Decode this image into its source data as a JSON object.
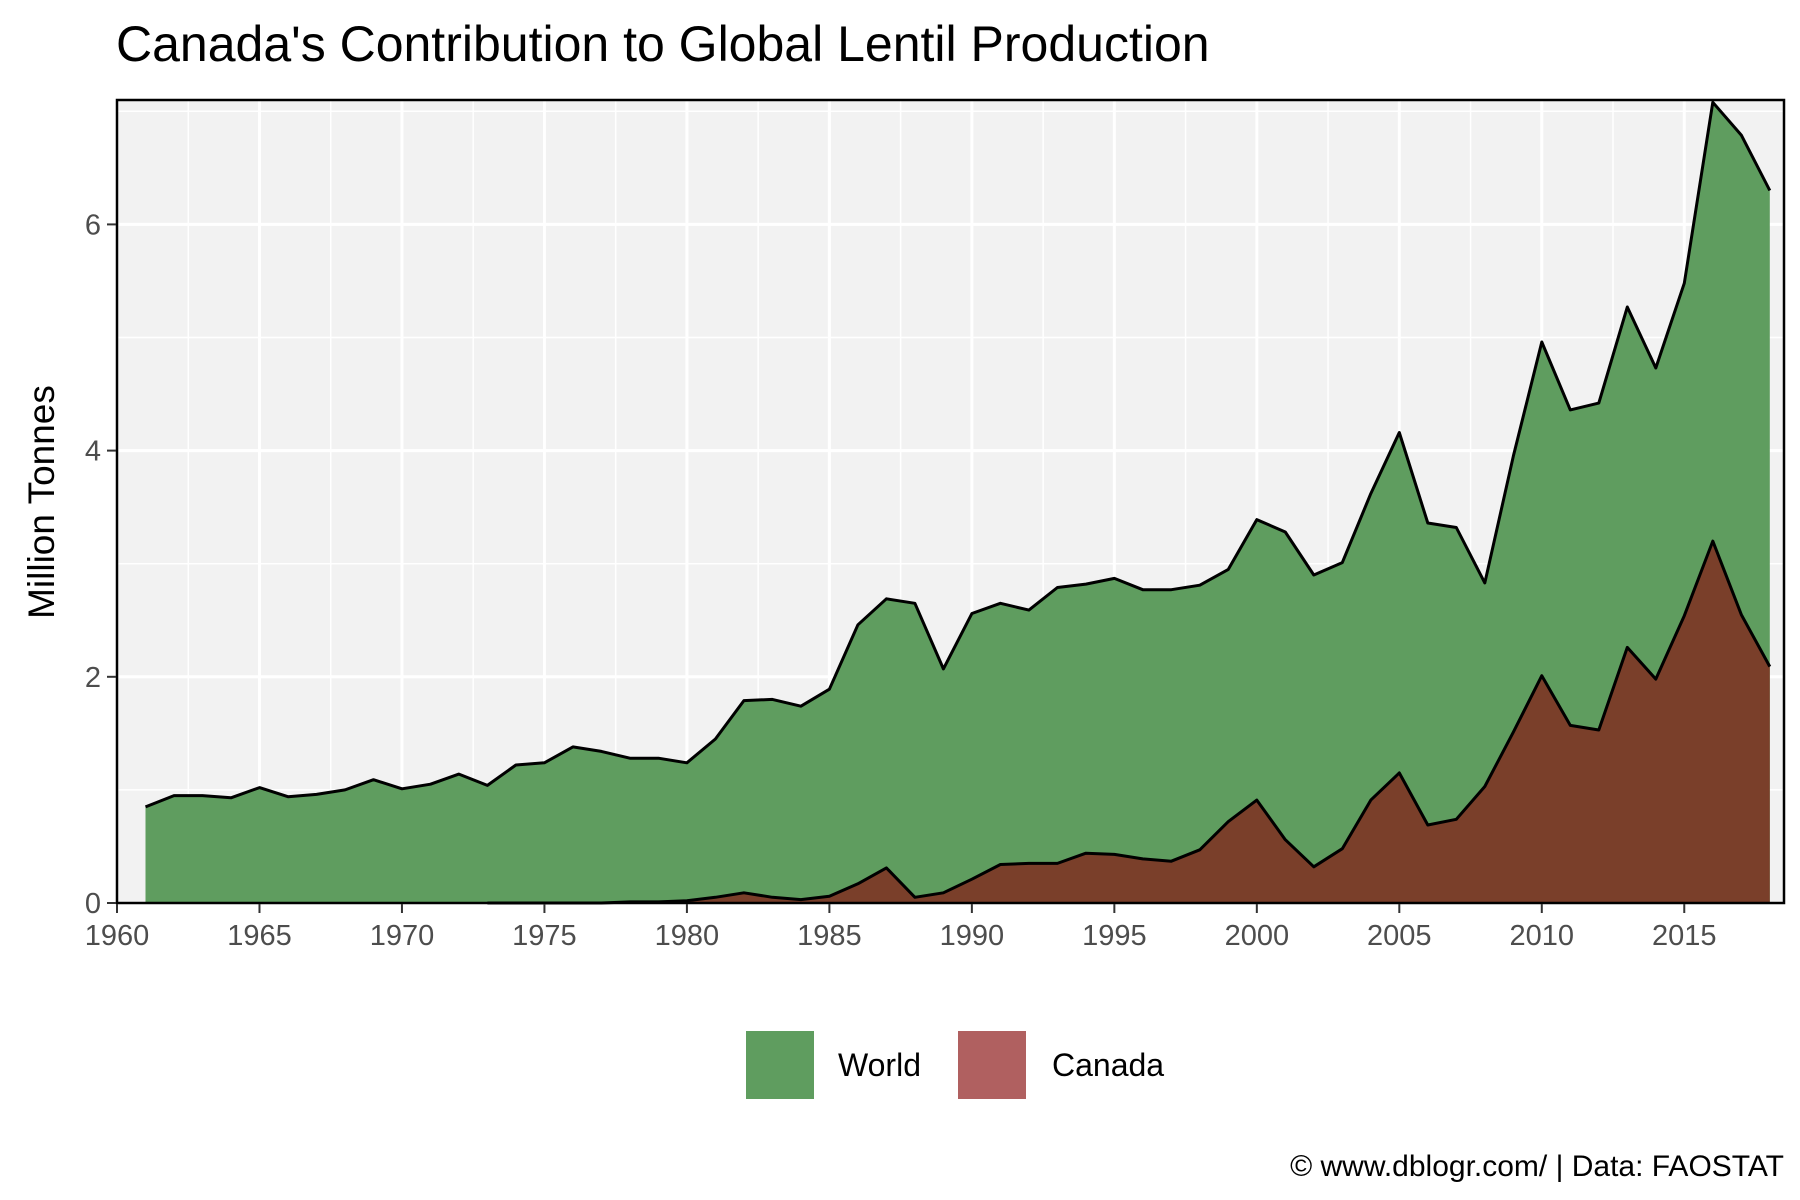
{
  "chart_data": {
    "type": "area",
    "title": "Canada's Contribution to Global Lentil Production",
    "xlabel": "",
    "ylabel": "Million Tonnes",
    "xlim": [
      1960,
      2018.5
    ],
    "ylim": [
      0,
      7.1
    ],
    "x_ticks": [
      "1960",
      "1965",
      "1970",
      "1975",
      "1980",
      "1985",
      "1990",
      "1995",
      "2000",
      "2005",
      "2010",
      "2015"
    ],
    "y_ticks": [
      "0",
      "2",
      "4",
      "6"
    ],
    "grid": true,
    "legend_position": "bottom",
    "series": [
      {
        "name": "World",
        "color": "#5f9d5f",
        "x": [
          1961,
          1962,
          1963,
          1964,
          1965,
          1966,
          1967,
          1968,
          1969,
          1970,
          1971,
          1972,
          1973,
          1974,
          1975,
          1976,
          1977,
          1978,
          1979,
          1980,
          1981,
          1982,
          1983,
          1984,
          1985,
          1986,
          1987,
          1988,
          1989,
          1990,
          1991,
          1992,
          1993,
          1994,
          1995,
          1996,
          1997,
          1998,
          1999,
          2000,
          2001,
          2002,
          2003,
          2004,
          2005,
          2006,
          2007,
          2008,
          2009,
          2010,
          2011,
          2012,
          2013,
          2014,
          2015,
          2016,
          2017,
          2018
        ],
        "values": [
          0.85,
          0.95,
          0.95,
          0.93,
          1.02,
          0.94,
          0.96,
          1.0,
          1.09,
          1.01,
          1.05,
          1.14,
          1.04,
          1.22,
          1.24,
          1.38,
          1.34,
          1.28,
          1.28,
          1.24,
          1.45,
          1.79,
          1.8,
          1.74,
          1.89,
          2.46,
          2.69,
          2.65,
          2.07,
          2.56,
          2.65,
          2.59,
          2.79,
          2.82,
          2.87,
          2.77,
          2.77,
          2.81,
          2.95,
          3.39,
          3.28,
          2.9,
          3.01,
          3.62,
          4.16,
          3.36,
          3.32,
          2.83,
          3.95,
          4.96,
          4.36,
          4.42,
          5.27,
          4.73,
          5.48,
          7.08,
          6.79,
          6.3
        ]
      },
      {
        "name": "Canada",
        "color": "#7a3f2a",
        "x": [
          1973,
          1974,
          1975,
          1976,
          1977,
          1978,
          1979,
          1980,
          1981,
          1982,
          1983,
          1984,
          1985,
          1986,
          1987,
          1988,
          1989,
          1990,
          1991,
          1992,
          1993,
          1994,
          1995,
          1996,
          1997,
          1998,
          1999,
          2000,
          2001,
          2002,
          2003,
          2004,
          2005,
          2006,
          2007,
          2008,
          2009,
          2010,
          2011,
          2012,
          2013,
          2014,
          2015,
          2016,
          2017,
          2018
        ],
        "values": [
          0.0,
          0.0,
          0.0,
          0.0,
          0.0,
          0.01,
          0.01,
          0.02,
          0.05,
          0.09,
          0.05,
          0.03,
          0.06,
          0.17,
          0.31,
          0.05,
          0.09,
          0.21,
          0.34,
          0.35,
          0.35,
          0.44,
          0.43,
          0.39,
          0.37,
          0.47,
          0.72,
          0.91,
          0.56,
          0.32,
          0.48,
          0.91,
          1.15,
          0.69,
          0.74,
          1.03,
          1.51,
          2.01,
          1.57,
          1.53,
          2.26,
          1.98,
          2.54,
          3.2,
          2.55,
          2.09
        ]
      }
    ],
    "legend": [
      {
        "label": "World",
        "color": "#5f9d5f"
      },
      {
        "label": "Canada",
        "color": "#b06060"
      }
    ],
    "caption": "© www.dblogr.com/  |  Data: FAOSTAT"
  }
}
